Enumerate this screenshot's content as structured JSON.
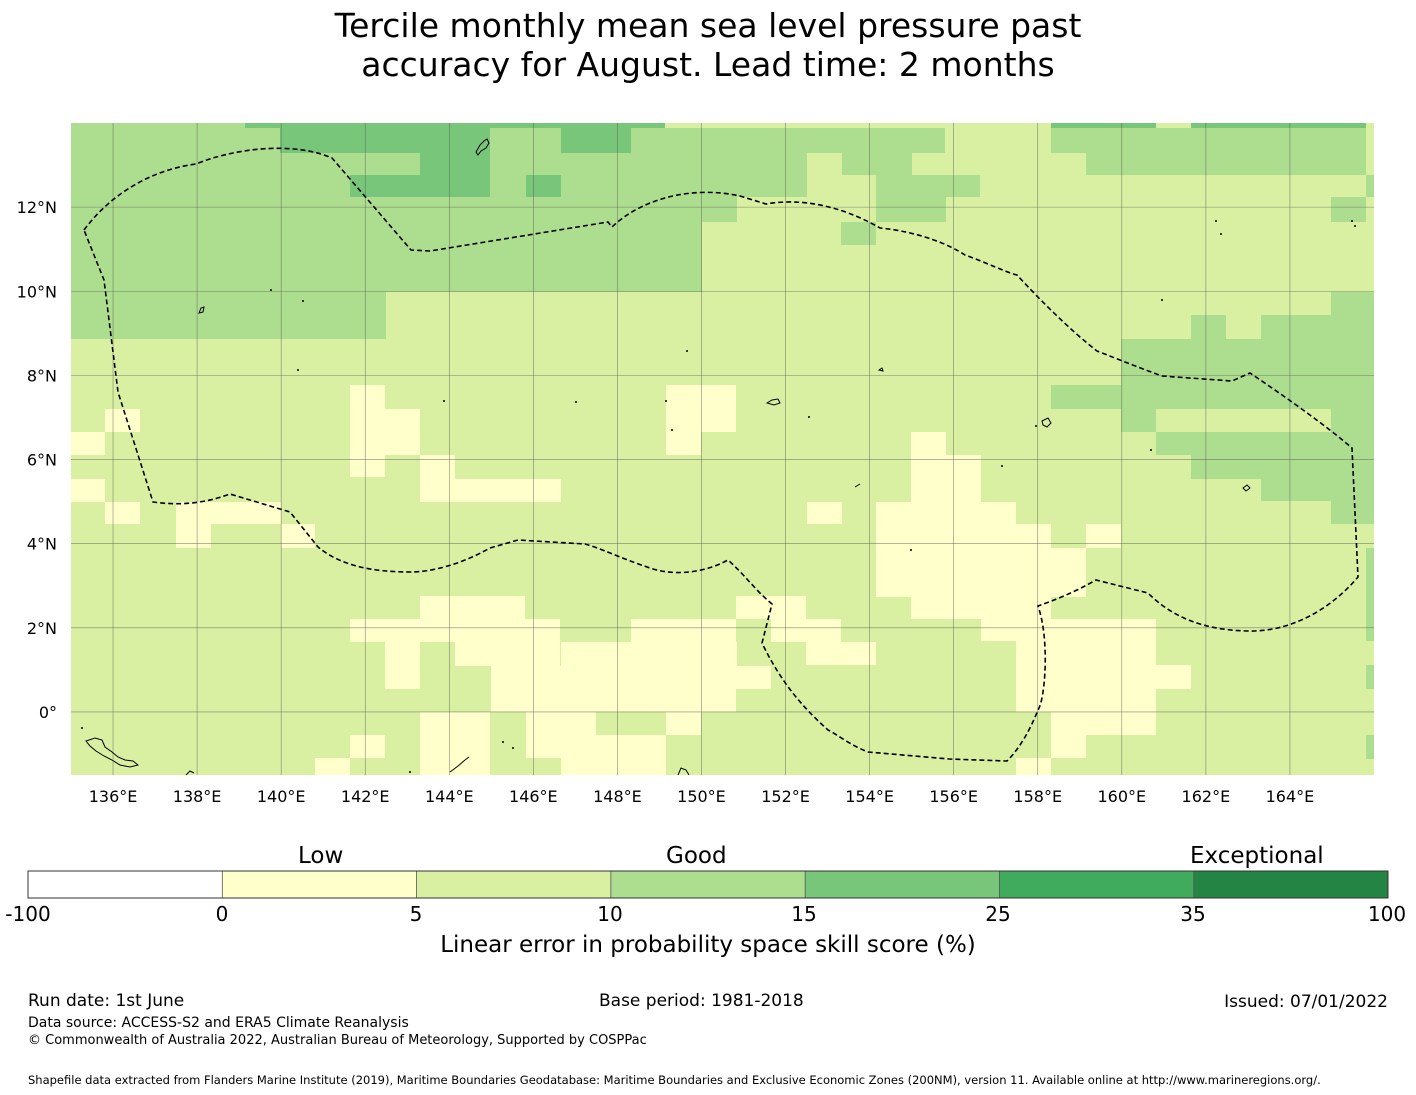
{
  "title": {
    "line1": "Tercile monthly mean sea level pressure past",
    "line2": "accuracy for August. Lead time: 2 months"
  },
  "map": {
    "region": "Micronesia (EEZ)",
    "lon_range": [
      135,
      166
    ],
    "lat_range": [
      -1.5,
      14
    ],
    "lon_ticks": [
      "136°E",
      "138°E",
      "140°E",
      "142°E",
      "144°E",
      "146°E",
      "148°E",
      "150°E",
      "152°E",
      "154°E",
      "156°E",
      "158°E",
      "160°E",
      "162°E",
      "164°E"
    ],
    "lat_ticks": [
      "12°N",
      "10°N",
      "8°N",
      "6°N",
      "4°N",
      "2°N",
      "0°"
    ],
    "gridlines": true,
    "eez_boundary_style": "dashed"
  },
  "colorbar": {
    "categories": [
      "Low",
      "Good",
      "Exceptional"
    ],
    "ticks": [
      "-100",
      "0",
      "5",
      "10",
      "15",
      "25",
      "35",
      "100"
    ],
    "colors": [
      "#ffffff",
      "#ffffcc",
      "#d9f0a3",
      "#addd8e",
      "#78c679",
      "#41ab5d",
      "#238443"
    ],
    "label": "Linear error in probability space skill score (%)"
  },
  "footer": {
    "run_date": "Run date: 1st June",
    "base_period": "Base period: 1981-2018",
    "issued": "Issued: 07/01/2022",
    "data_source": "Data source: ACCESS-S2 and ERA5 Climate Reanalysis",
    "copyright": "© Commonwealth of Australia 2022, Australian Bureau of Meteorology, Supported by COSPPac",
    "shapefile": "Shapefile data extracted from Flanders Marine Institute (2019), Maritime Boundaries Geodatabase: Maritime Boundaries and Exclusive Economic Zones (200NM), version 11. Available online at http://www.marineregions.org/."
  }
}
